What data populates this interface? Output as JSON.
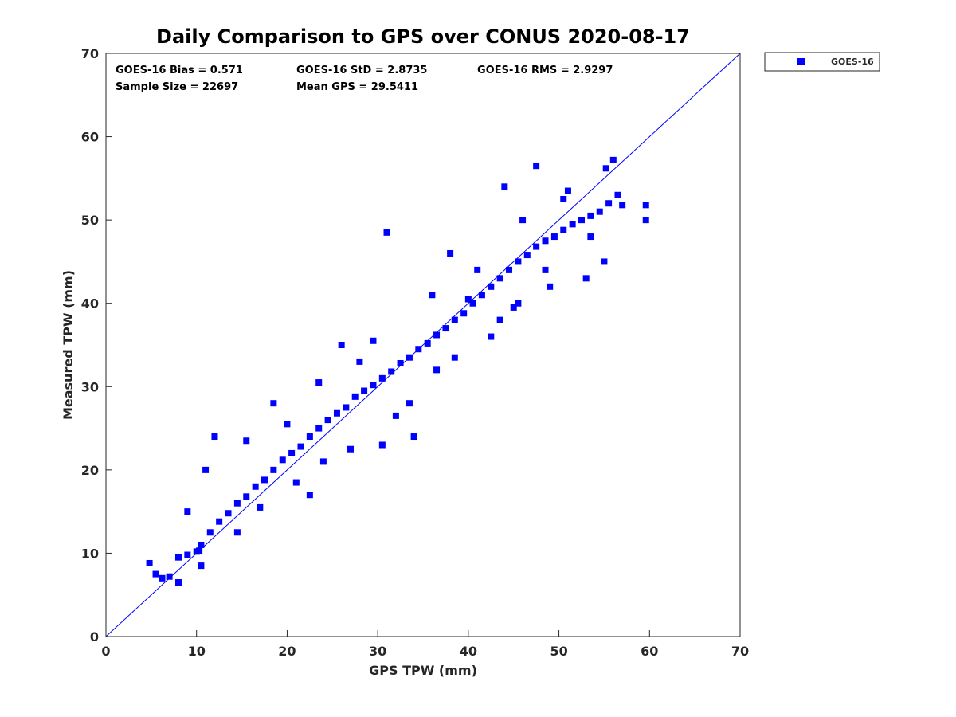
{
  "chart_data": {
    "type": "scatter",
    "title": "Daily Comparison to GPS over CONUS 2020-08-17",
    "xlabel": "GPS TPW (mm)",
    "ylabel": "Measured TPW (mm)",
    "xlim": [
      0,
      70
    ],
    "ylim": [
      0,
      70
    ],
    "xticks": [
      "0",
      "10",
      "20",
      "30",
      "40",
      "50",
      "60",
      "70"
    ],
    "yticks": [
      "0",
      "10",
      "20",
      "30",
      "40",
      "50",
      "60",
      "70"
    ],
    "grid": false,
    "legend_position": "outside-top-right",
    "reference_line": {
      "from": [
        0,
        0
      ],
      "to": [
        70,
        70
      ],
      "color": "#0000ff"
    },
    "stats": {
      "bias": "GOES-16 Bias = 0.571",
      "std": "GOES-16 StD = 2.8735",
      "rms": "GOES-16 RMS = 2.9297",
      "sample": "Sample Size = 22697",
      "mean": "Mean GPS = 29.5411"
    },
    "series": [
      {
        "name": "GOES-16",
        "color": "#0000ff",
        "marker": "square",
        "x": [
          4.8,
          5.5,
          6.2,
          7.0,
          8.0,
          9.0,
          10.0,
          10.5,
          11.5,
          12.5,
          13.5,
          14.5,
          15.5,
          16.5,
          17.5,
          18.5,
          19.5,
          20.5,
          21.5,
          22.5,
          23.5,
          24.5,
          25.5,
          26.5,
          27.5,
          28.5,
          29.5,
          30.5,
          31.5,
          32.5,
          33.5,
          34.5,
          35.5,
          36.5,
          37.5,
          38.5,
          39.5,
          40.5,
          41.5,
          42.5,
          43.5,
          44.5,
          45.5,
          46.5,
          47.5,
          48.5,
          49.5,
          50.5,
          51.5,
          52.5,
          53.5,
          54.5,
          55.5,
          56.5,
          57.0,
          59.6,
          59.6,
          10.3,
          15.5,
          22.5,
          26.0,
          30.5,
          31.0,
          34.0,
          38.0,
          42.5,
          44.0,
          47.5,
          49.0,
          50.5,
          53.0,
          55.0,
          56.0,
          45.5,
          55.2,
          9.0,
          12.0,
          14.5,
          18.5,
          21.0,
          23.5,
          27.0,
          29.5,
          33.5,
          36.0,
          38.5,
          41.0,
          43.5,
          46.0,
          48.5,
          51.0,
          53.5,
          8.0,
          11.0,
          10.5,
          17.0,
          20.0,
          24.0,
          28.0,
          32.0,
          36.5,
          40.0,
          45.0
        ],
        "y": [
          8.8,
          7.5,
          7.0,
          7.2,
          9.5,
          9.8,
          10.2,
          11.0,
          12.5,
          13.8,
          14.8,
          16.0,
          16.8,
          18.0,
          18.8,
          20.0,
          21.2,
          22.0,
          22.8,
          24.0,
          25.0,
          26.0,
          26.8,
          27.5,
          28.8,
          29.5,
          30.2,
          31.0,
          31.8,
          32.8,
          33.5,
          34.5,
          35.2,
          36.2,
          37.0,
          38.0,
          38.8,
          40.0,
          41.0,
          42.0,
          43.0,
          44.0,
          45.0,
          45.8,
          46.8,
          47.5,
          48.0,
          48.8,
          49.5,
          50.0,
          50.5,
          51.0,
          52.0,
          53.0,
          51.8,
          51.8,
          50.0,
          10.3,
          23.5,
          17.0,
          35.0,
          23.0,
          48.5,
          24.0,
          46.0,
          36.0,
          54.0,
          56.5,
          42.0,
          52.5,
          43.0,
          45.0,
          57.2,
          40.0,
          56.2,
          15.0,
          24.0,
          12.5,
          28.0,
          18.5,
          30.5,
          22.5,
          35.5,
          28.0,
          41.0,
          33.5,
          44.0,
          38.0,
          50.0,
          44.0,
          53.5,
          48.0,
          6.5,
          20.0,
          8.5,
          15.5,
          25.5,
          21.0,
          33.0,
          26.5,
          32.0,
          40.5,
          39.5
        ]
      }
    ]
  }
}
